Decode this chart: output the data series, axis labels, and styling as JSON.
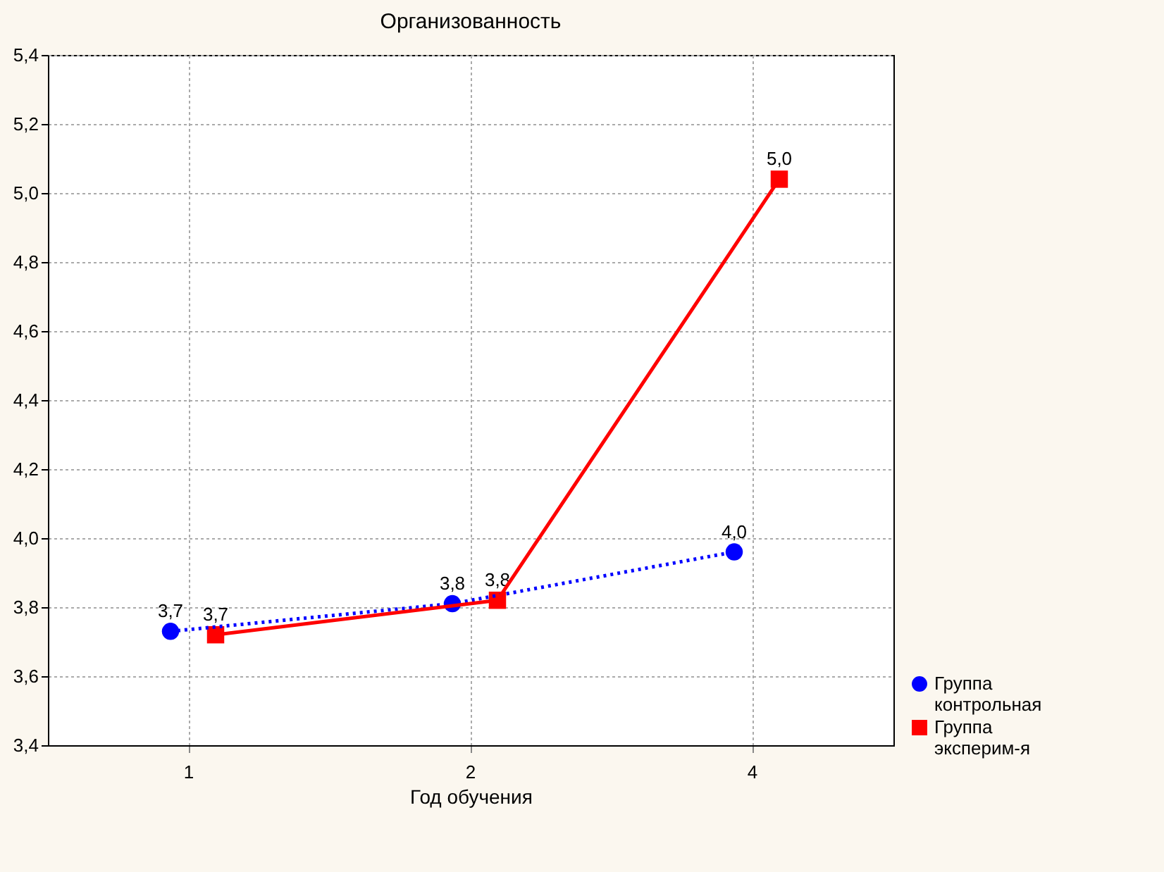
{
  "chart_data": {
    "type": "line",
    "title": "Организованность",
    "xlabel": "Год обучения",
    "categories": [
      "1",
      "2",
      "4"
    ],
    "series": [
      {
        "name": "Группа контрольная",
        "color": "#0000ff",
        "values": [
          3.73,
          3.81,
          3.96
        ],
        "value_labels": [
          "3,7",
          "3,8",
          "4,0"
        ],
        "marker": "circle",
        "line_style": "dotted"
      },
      {
        "name": "Группа эксперим-я",
        "color": "#ff0000",
        "values": [
          3.72,
          3.82,
          5.04
        ],
        "value_labels": [
          "3,7",
          "3,8",
          "5,0"
        ],
        "marker": "square",
        "line_style": "solid"
      }
    ],
    "ylim": [
      3.4,
      5.4
    ],
    "yticks": [
      {
        "value": 3.4,
        "label": "3,4"
      },
      {
        "value": 3.6,
        "label": "3,6"
      },
      {
        "value": 3.8,
        "label": "3,8"
      },
      {
        "value": 4.0,
        "label": "4,0"
      },
      {
        "value": 4.2,
        "label": "4,2"
      },
      {
        "value": 4.4,
        "label": "4,4"
      },
      {
        "value": 4.6,
        "label": "4,6"
      },
      {
        "value": 4.8,
        "label": "4,8"
      },
      {
        "value": 5.0,
        "label": "5,0"
      },
      {
        "value": 5.2,
        "label": "5,2"
      },
      {
        "value": 5.4,
        "label": "5,4"
      }
    ],
    "grid": true,
    "legend": "bottom right"
  }
}
